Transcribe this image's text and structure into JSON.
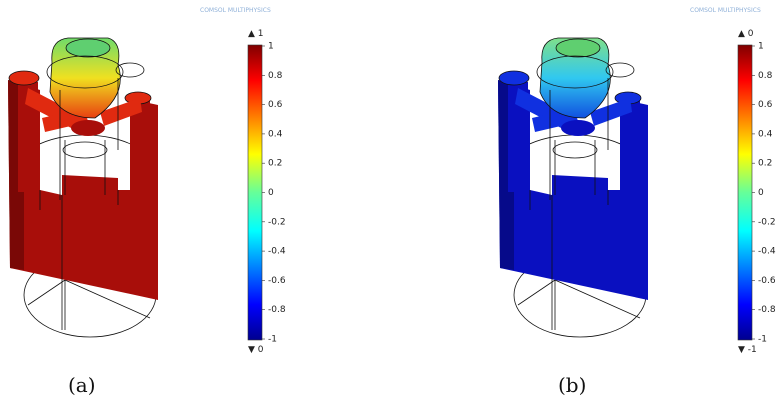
{
  "panels": [
    {
      "watermark": "COMSOL MULTIPHYSICS",
      "max_label": "▲ 1",
      "min_label": "▼ 0",
      "colorbar_ticks": [
        "1",
        "0.8",
        "0.6",
        "0.4",
        "0.2",
        "0",
        "-0.2",
        "-0.4",
        "-0.6",
        "-0.8",
        "-1"
      ],
      "caption": "(a)"
    },
    {
      "watermark": "COMSOL MULTIPHYSICS",
      "max_label": "▲ 0",
      "min_label": "▼ -1",
      "colorbar_ticks": [
        "1",
        "0.8",
        "0.6",
        "0.4",
        "0.2",
        "0",
        "-0.2",
        "-0.4",
        "-0.6",
        "-0.8",
        "-1"
      ],
      "caption": "(b)"
    }
  ]
}
